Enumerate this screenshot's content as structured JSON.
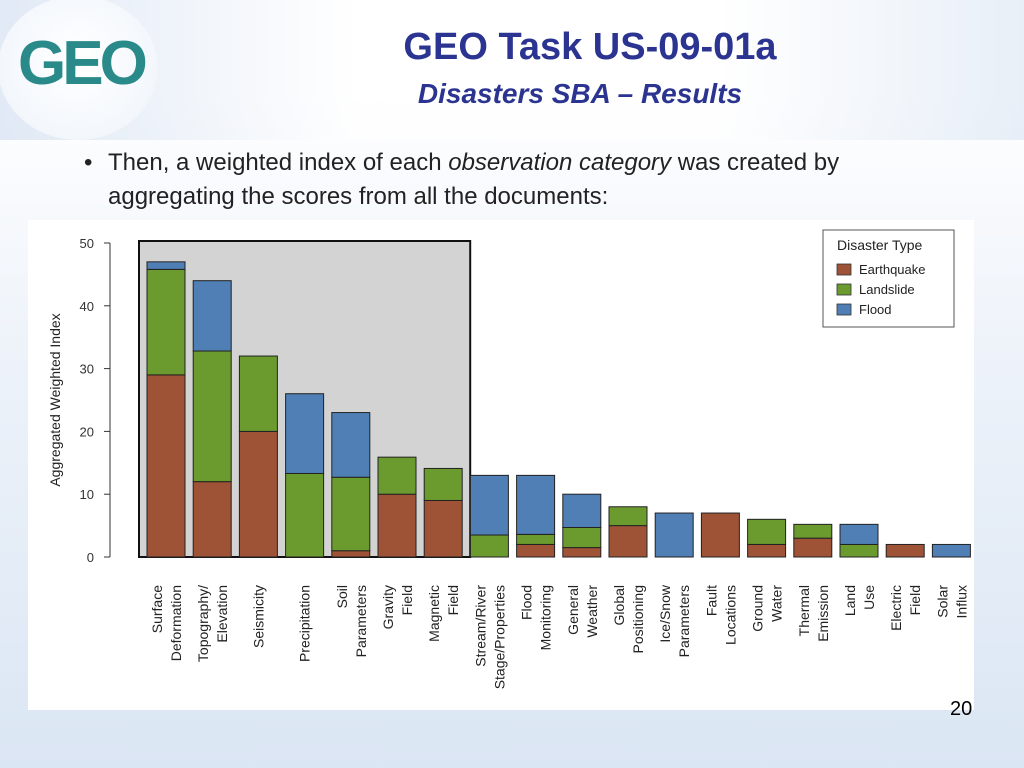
{
  "slide": {
    "title": "GEO Task US-09-01a",
    "subtitle": "Disasters SBA – Results",
    "bullet_before": "Then, a weighted index of each ",
    "bullet_italic": "observation category",
    "bullet_after": " was created by aggregating the scores from all the documents:",
    "page_number": "20",
    "logo_text": "GEO"
  },
  "colors": {
    "earthquake": "#9e5236",
    "landslide": "#6b9a2e",
    "flood": "#4f7fb5",
    "highlight_box": "#d3d3d3",
    "title": "#2b3591"
  },
  "chart_data": {
    "type": "bar",
    "stacked": true,
    "ylabel": "Aggregated Weighted Index",
    "xlabel": "",
    "ylim": [
      0,
      50
    ],
    "yticks": [
      0,
      10,
      20,
      30,
      40,
      50
    ],
    "legend_title": "Disaster Type",
    "legend_position": "top-right",
    "highlight_first_n": 7,
    "categories": [
      [
        "Surface",
        "Deformation"
      ],
      [
        "Topography/",
        "Elevation"
      ],
      [
        "Seismicity"
      ],
      [
        "Precipitation"
      ],
      [
        "Soil",
        "Parameters"
      ],
      [
        "Gravity",
        "Field"
      ],
      [
        "Magnetic",
        "Field"
      ],
      [
        "Stream/River",
        "Stage/Properties"
      ],
      [
        "Flood",
        "Monitoring"
      ],
      [
        "General",
        "Weather"
      ],
      [
        "Global",
        "Positioning"
      ],
      [
        "Ice/Snow",
        "Parameters"
      ],
      [
        "Fault",
        "Locations"
      ],
      [
        "Ground",
        "Water"
      ],
      [
        "Thermal",
        "Emission"
      ],
      [
        "Land",
        "Use"
      ],
      [
        "Electric",
        "Field"
      ],
      [
        "Solar",
        "Influx"
      ]
    ],
    "series": [
      {
        "name": "Earthquake",
        "values": [
          29,
          12,
          20,
          0,
          1,
          10,
          9,
          0,
          2,
          1.5,
          5,
          0,
          7,
          2,
          3,
          0,
          2,
          0
        ]
      },
      {
        "name": "Landslide",
        "values": [
          16.8,
          20.8,
          12,
          13.3,
          11.7,
          5.9,
          5.1,
          3.5,
          1.6,
          3.2,
          3,
          0,
          0,
          4,
          2.2,
          2,
          0,
          0
        ]
      },
      {
        "name": "Flood",
        "values": [
          1.2,
          11.2,
          0,
          12.7,
          10.3,
          0,
          0,
          9.5,
          9.4,
          5.3,
          0,
          7,
          0,
          0,
          0,
          3.2,
          0,
          2
        ]
      }
    ]
  }
}
